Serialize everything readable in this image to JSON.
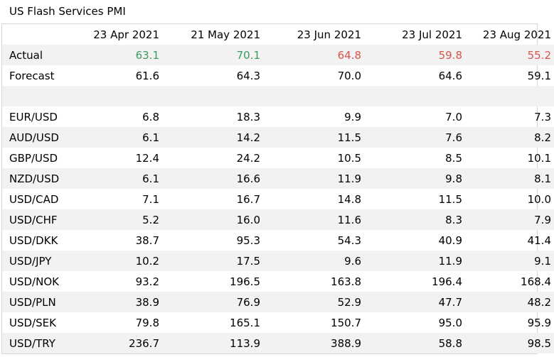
{
  "title": "US Flash Services PMI",
  "columns": [
    "23 Apr 2021",
    "21 May 2021",
    "23 Jun 2021",
    "23 Jul 2021",
    "23 Aug 2021"
  ],
  "colors": {
    "positive": "#3a9a62",
    "negative": "#d9534f",
    "row_shade": "#f2f2f2"
  },
  "rows": [
    {
      "label": "Actual",
      "values": [
        "63.1",
        "70.1",
        "64.8",
        "59.8",
        "55.2"
      ],
      "tones": [
        "green",
        "green",
        "red",
        "red",
        "red"
      ]
    },
    {
      "label": "Forecast",
      "values": [
        "61.6",
        "64.3",
        "70.0",
        "64.6",
        "59.1"
      ]
    },
    {
      "label": "",
      "values": [
        "",
        "",
        "",
        "",
        ""
      ]
    },
    {
      "label": "EUR/USD",
      "values": [
        "6.8",
        "18.3",
        "9.9",
        "7.0",
        "7.3"
      ]
    },
    {
      "label": "AUD/USD",
      "values": [
        "6.1",
        "14.2",
        "11.5",
        "7.6",
        "8.2"
      ]
    },
    {
      "label": "GBP/USD",
      "values": [
        "12.4",
        "24.2",
        "10.5",
        "8.5",
        "10.1"
      ]
    },
    {
      "label": "NZD/USD",
      "values": [
        "6.1",
        "16.6",
        "11.9",
        "9.8",
        "8.1"
      ]
    },
    {
      "label": "USD/CAD",
      "values": [
        "7.1",
        "16.7",
        "14.8",
        "11.5",
        "10.0"
      ]
    },
    {
      "label": "USD/CHF",
      "values": [
        "5.2",
        "16.0",
        "11.6",
        "8.3",
        "7.9"
      ]
    },
    {
      "label": "USD/DKK",
      "values": [
        "38.7",
        "95.3",
        "54.3",
        "40.9",
        "41.4"
      ]
    },
    {
      "label": "USD/JPY",
      "values": [
        "10.2",
        "17.5",
        "9.6",
        "11.9",
        "9.1"
      ]
    },
    {
      "label": "USD/NOK",
      "values": [
        "93.2",
        "196.5",
        "163.8",
        "196.4",
        "168.4"
      ]
    },
    {
      "label": "USD/PLN",
      "values": [
        "38.9",
        "76.9",
        "52.9",
        "47.7",
        "48.2"
      ]
    },
    {
      "label": "USD/SEK",
      "values": [
        "79.8",
        "165.1",
        "150.7",
        "95.0",
        "95.9"
      ]
    },
    {
      "label": "USD/TRY",
      "values": [
        "236.7",
        "113.9",
        "388.9",
        "58.8",
        "98.5"
      ]
    }
  ]
}
